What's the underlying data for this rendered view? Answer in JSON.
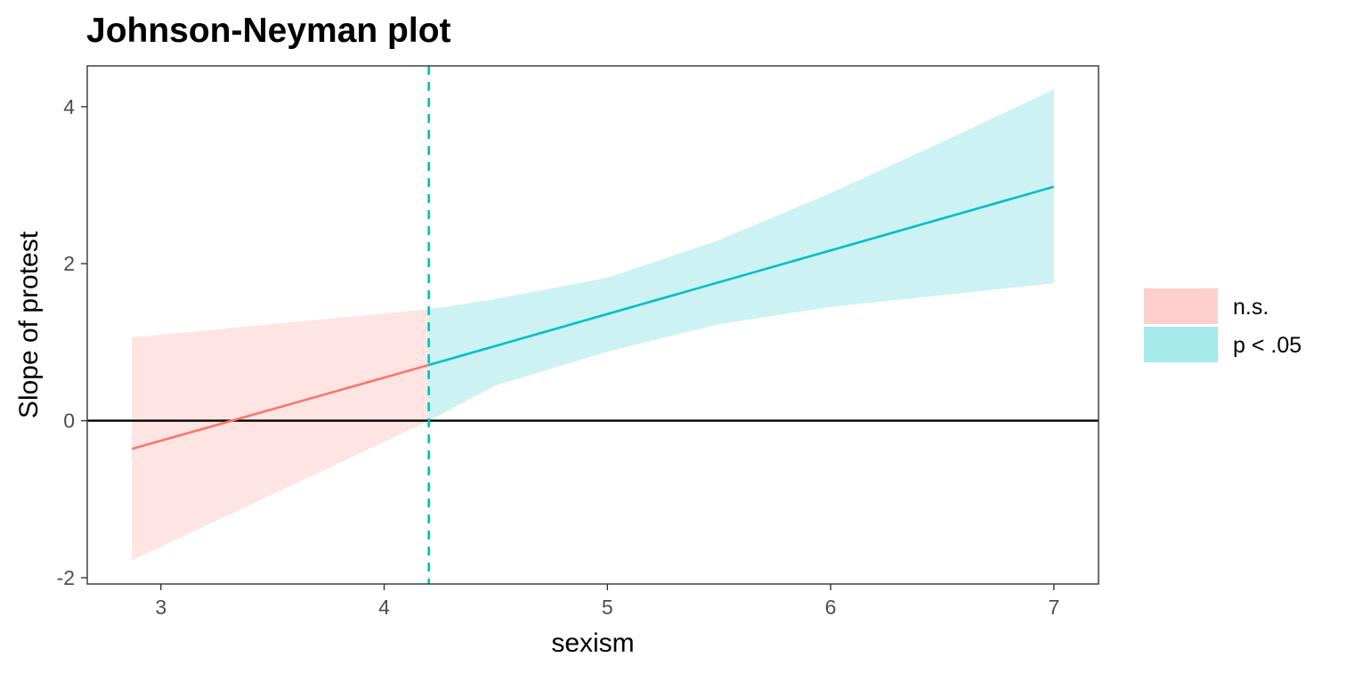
{
  "chart_data": {
    "type": "line",
    "title": "Johnson-Neyman plot",
    "xlabel": "sexism",
    "ylabel": "Slope of protest",
    "xlim": [
      2.67,
      7.2
    ],
    "ylim": [
      -2.08,
      4.52
    ],
    "x_ticks": [
      3,
      4,
      5,
      6,
      7
    ],
    "y_ticks": [
      -2,
      0,
      2,
      4
    ],
    "threshold": 4.2,
    "threshold_color": "#00BFC4",
    "zero_line": 0,
    "grid": false,
    "legend_position": "right",
    "series": [
      {
        "name": "n.s.",
        "color": "#F8766D",
        "fill": "#F8766D",
        "x": [
          2.87,
          4.2
        ],
        "y": [
          -0.36,
          0.71
        ],
        "band_x": [
          2.87,
          4.2
        ],
        "band_lower": [
          -1.78,
          0.0
        ],
        "band_upper": [
          1.06,
          1.42
        ]
      },
      {
        "name": "p < .05",
        "color": "#00BFC4",
        "fill": "#00BFC4",
        "x": [
          4.2,
          7.0
        ],
        "y": [
          0.71,
          2.98
        ],
        "band_x": [
          4.2,
          4.5,
          5.0,
          5.5,
          6.0,
          6.5,
          7.0
        ],
        "band_lower": [
          0.0,
          0.45,
          0.88,
          1.23,
          1.45,
          1.6,
          1.75
        ],
        "band_upper": [
          1.42,
          1.55,
          1.82,
          2.3,
          2.9,
          3.55,
          4.22
        ]
      }
    ]
  }
}
